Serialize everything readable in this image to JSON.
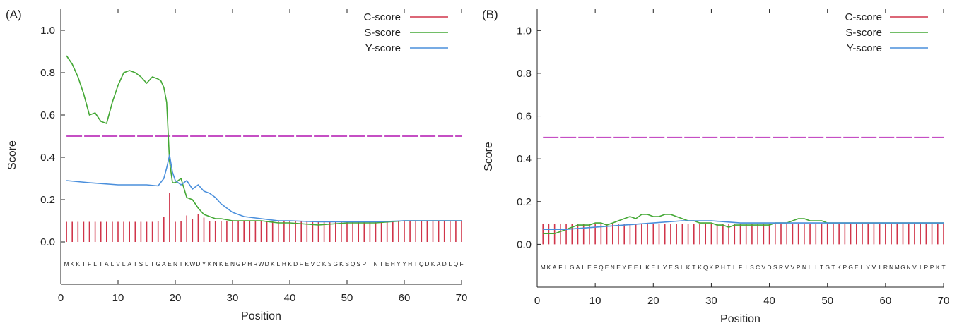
{
  "colors": {
    "c_score": "#d0354a",
    "s_score": "#44a835",
    "y_score": "#4a8fdc",
    "threshold": "#c54fc4",
    "axis": "#222222"
  },
  "chart_data": [
    {
      "panel_label": "(A)",
      "type": "line",
      "xlabel": "Position",
      "ylabel": "Score",
      "xlim": [
        0,
        70
      ],
      "ylim": [
        -0.2,
        1.1
      ],
      "x_ticks": [
        "0",
        "10",
        "20",
        "30",
        "40",
        "50",
        "60",
        "70"
      ],
      "y_ticks": [
        "0.0",
        "0.2",
        "0.4",
        "0.6",
        "0.8",
        "1.0"
      ],
      "grid": false,
      "legend_position": "top-right",
      "threshold": 0.5,
      "sequence": "MKKTFLIALVLATSLIGAENTKWDYKNKENGPHRWDKLHKDFEVCKSGKSQSPINIEHYYHTQDKADLQF",
      "series": [
        {
          "name": "C-score",
          "kind": "bars",
          "x": [
            1,
            2,
            3,
            4,
            5,
            6,
            7,
            8,
            9,
            10,
            11,
            12,
            13,
            14,
            15,
            16,
            17,
            18,
            19,
            20,
            21,
            22,
            23,
            24,
            25,
            26,
            27,
            28,
            29,
            30,
            31,
            32,
            33,
            34,
            35,
            36,
            37,
            38,
            39,
            40,
            41,
            42,
            43,
            44,
            45,
            46,
            47,
            48,
            49,
            50,
            51,
            52,
            53,
            54,
            55,
            56,
            57,
            58,
            59,
            60,
            61,
            62,
            63,
            64,
            65,
            66,
            67,
            68,
            69,
            70
          ],
          "values": [
            0.095,
            0.095,
            0.095,
            0.095,
            0.095,
            0.095,
            0.095,
            0.095,
            0.095,
            0.095,
            0.095,
            0.095,
            0.095,
            0.095,
            0.095,
            0.095,
            0.1,
            0.12,
            0.23,
            0.095,
            0.1,
            0.125,
            0.11,
            0.13,
            0.115,
            0.1,
            0.1,
            0.1,
            0.1,
            0.1,
            0.1,
            0.1,
            0.1,
            0.1,
            0.1,
            0.1,
            0.1,
            0.1,
            0.1,
            0.1,
            0.1,
            0.1,
            0.1,
            0.1,
            0.1,
            0.1,
            0.1,
            0.1,
            0.1,
            0.1,
            0.1,
            0.1,
            0.1,
            0.1,
            0.1,
            0.1,
            0.1,
            0.1,
            0.1,
            0.1,
            0.1,
            0.1,
            0.1,
            0.1,
            0.1,
            0.1,
            0.1,
            0.1,
            0.1,
            0.1
          ]
        },
        {
          "name": "S-score",
          "kind": "line",
          "x": [
            1,
            2,
            3,
            4,
            5,
            6,
            7,
            8,
            9,
            10,
            11,
            12,
            13,
            14,
            15,
            16,
            17,
            17.5,
            18,
            18.5,
            19,
            19.5,
            20,
            21,
            22,
            23,
            24,
            25,
            26,
            27,
            28,
            30,
            32,
            35,
            38,
            40,
            45,
            50,
            55,
            60,
            65,
            70
          ],
          "values": [
            0.88,
            0.84,
            0.78,
            0.7,
            0.6,
            0.61,
            0.57,
            0.56,
            0.66,
            0.74,
            0.8,
            0.81,
            0.8,
            0.78,
            0.75,
            0.78,
            0.77,
            0.76,
            0.73,
            0.66,
            0.38,
            0.28,
            0.28,
            0.3,
            0.21,
            0.2,
            0.16,
            0.13,
            0.12,
            0.11,
            0.11,
            0.1,
            0.1,
            0.1,
            0.09,
            0.09,
            0.08,
            0.09,
            0.09,
            0.1,
            0.1,
            0.1
          ]
        },
        {
          "name": "Y-score",
          "kind": "line",
          "x": [
            1,
            5,
            10,
            15,
            17,
            18,
            18.5,
            19,
            19.5,
            20,
            21,
            22,
            23,
            24,
            25,
            26,
            27,
            28,
            30,
            32,
            35,
            38,
            40,
            45,
            50,
            55,
            60,
            65,
            70
          ],
          "values": [
            0.29,
            0.28,
            0.27,
            0.27,
            0.265,
            0.3,
            0.35,
            0.41,
            0.33,
            0.29,
            0.27,
            0.29,
            0.25,
            0.27,
            0.24,
            0.23,
            0.21,
            0.18,
            0.14,
            0.12,
            0.11,
            0.1,
            0.1,
            0.095,
            0.095,
            0.095,
            0.1,
            0.1,
            0.1
          ]
        }
      ]
    },
    {
      "panel_label": "(B)",
      "type": "line",
      "xlabel": "Position",
      "ylabel": "Score",
      "xlim": [
        0,
        70
      ],
      "ylim": [
        -0.2,
        1.1
      ],
      "x_ticks": [
        "0",
        "10",
        "20",
        "30",
        "40",
        "50",
        "60",
        "70"
      ],
      "y_ticks": [
        "0.0",
        "0.2",
        "0.4",
        "0.6",
        "0.8",
        "1.0"
      ],
      "grid": false,
      "legend_position": "top-right",
      "threshold": 0.5,
      "sequence": "MKAFLGALEFQENEYEELKELYESLKTKQKPHTLFISCVDSRVVPNLITGTKPGELYVIRNMGNVIPPKT",
      "series": [
        {
          "name": "C-score",
          "kind": "bars",
          "x": [
            1,
            2,
            3,
            4,
            5,
            6,
            7,
            8,
            9,
            10,
            11,
            12,
            13,
            14,
            15,
            16,
            17,
            18,
            19,
            20,
            21,
            22,
            23,
            24,
            25,
            26,
            27,
            28,
            29,
            30,
            31,
            32,
            33,
            34,
            35,
            36,
            37,
            38,
            39,
            40,
            41,
            42,
            43,
            44,
            45,
            46,
            47,
            48,
            49,
            50,
            51,
            52,
            53,
            54,
            55,
            56,
            57,
            58,
            59,
            60,
            61,
            62,
            63,
            64,
            65,
            66,
            67,
            68,
            69,
            70
          ],
          "values": [
            0.095,
            0.095,
            0.095,
            0.095,
            0.095,
            0.095,
            0.095,
            0.095,
            0.095,
            0.095,
            0.095,
            0.095,
            0.095,
            0.095,
            0.095,
            0.095,
            0.095,
            0.095,
            0.095,
            0.095,
            0.095,
            0.095,
            0.095,
            0.095,
            0.095,
            0.095,
            0.095,
            0.095,
            0.095,
            0.095,
            0.095,
            0.095,
            0.095,
            0.095,
            0.095,
            0.095,
            0.095,
            0.095,
            0.095,
            0.095,
            0.095,
            0.095,
            0.095,
            0.095,
            0.095,
            0.095,
            0.095,
            0.095,
            0.095,
            0.095,
            0.095,
            0.095,
            0.095,
            0.095,
            0.095,
            0.095,
            0.095,
            0.095,
            0.095,
            0.095,
            0.095,
            0.095,
            0.095,
            0.095,
            0.095,
            0.095,
            0.095,
            0.095,
            0.095,
            0.095
          ]
        },
        {
          "name": "S-score",
          "kind": "line",
          "x": [
            1,
            2,
            3,
            4,
            5,
            6,
            7,
            8,
            9,
            10,
            11,
            12,
            13,
            14,
            15,
            16,
            17,
            18,
            19,
            20,
            21,
            22,
            23,
            24,
            25,
            26,
            27,
            28,
            29,
            30,
            31,
            32,
            33,
            34,
            35,
            36,
            37,
            38,
            39,
            40,
            41,
            42,
            43,
            44,
            45,
            46,
            47,
            48,
            49,
            50,
            51,
            52,
            53,
            54,
            55,
            56,
            57,
            58,
            59,
            60,
            61,
            62,
            63,
            64,
            65,
            66,
            67,
            68,
            69,
            70
          ],
          "values": [
            0.05,
            0.05,
            0.05,
            0.06,
            0.07,
            0.08,
            0.09,
            0.09,
            0.09,
            0.1,
            0.1,
            0.09,
            0.1,
            0.11,
            0.12,
            0.13,
            0.12,
            0.14,
            0.14,
            0.13,
            0.13,
            0.14,
            0.14,
            0.13,
            0.12,
            0.11,
            0.11,
            0.1,
            0.1,
            0.1,
            0.09,
            0.09,
            0.08,
            0.09,
            0.09,
            0.09,
            0.09,
            0.09,
            0.09,
            0.09,
            0.1,
            0.1,
            0.1,
            0.11,
            0.12,
            0.12,
            0.11,
            0.11,
            0.11,
            0.1,
            0.1,
            0.1,
            0.1,
            0.1,
            0.1,
            0.1,
            0.1,
            0.1,
            0.1,
            0.1,
            0.1,
            0.1,
            0.1,
            0.1,
            0.1,
            0.1,
            0.1,
            0.1,
            0.1,
            0.1
          ]
        },
        {
          "name": "Y-score",
          "kind": "line",
          "x": [
            1,
            5,
            10,
            15,
            20,
            25,
            30,
            35,
            40,
            45,
            50,
            55,
            60,
            65,
            70
          ],
          "values": [
            0.07,
            0.07,
            0.08,
            0.09,
            0.1,
            0.11,
            0.11,
            0.1,
            0.1,
            0.1,
            0.1,
            0.1,
            0.1,
            0.1,
            0.1
          ]
        }
      ]
    }
  ]
}
